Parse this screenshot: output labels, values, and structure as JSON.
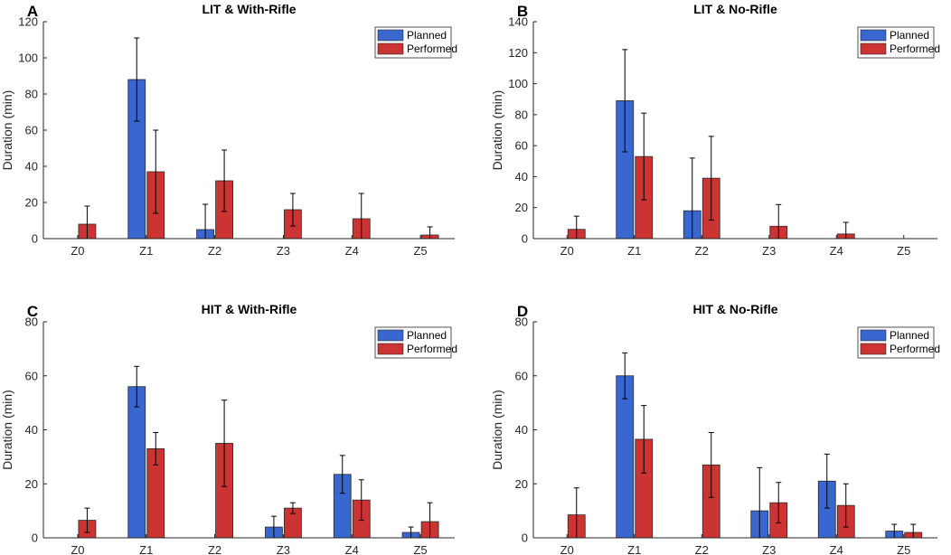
{
  "colors": {
    "planned": "#3a66cf",
    "performed": "#cc3333",
    "axis": "#262626",
    "error": "#000000"
  },
  "chart_data": [
    {
      "type": "bar",
      "letter": "A",
      "title": "LIT & With-Rifle",
      "xlabel": "",
      "ylabel": "Duration (min)",
      "ylim": [
        0,
        120
      ],
      "yticks": [
        "0",
        "20",
        "40",
        "60",
        "80",
        "100",
        "120"
      ],
      "categories": [
        "Z0",
        "Z1",
        "Z2",
        "Z3",
        "Z4",
        "Z5"
      ],
      "legend": [
        "Planned",
        "Performed"
      ],
      "legend_position": "top-right",
      "series": [
        {
          "name": "Planned",
          "values": [
            0,
            88,
            5,
            0,
            0,
            0
          ],
          "errors": [
            0,
            23,
            14,
            0,
            0,
            0
          ]
        },
        {
          "name": "Performed",
          "values": [
            8,
            37,
            32,
            16,
            11,
            2
          ],
          "errors": [
            10,
            23,
            17,
            9,
            14,
            4.5
          ]
        }
      ]
    },
    {
      "type": "bar",
      "letter": "B",
      "title": "LIT & No-Rifle",
      "xlabel": "",
      "ylabel": "Duration (min)",
      "ylim": [
        0,
        140
      ],
      "yticks": [
        "0",
        "20",
        "40",
        "60",
        "80",
        "100",
        "120",
        "140"
      ],
      "categories": [
        "Z0",
        "Z1",
        "Z2",
        "Z3",
        "Z4",
        "Z5"
      ],
      "legend": [
        "Planned",
        "Performed"
      ],
      "legend_position": "top-right",
      "series": [
        {
          "name": "Planned",
          "values": [
            0,
            89,
            18,
            0,
            0,
            0
          ],
          "errors": [
            0,
            33,
            34,
            0,
            0,
            0
          ]
        },
        {
          "name": "Performed",
          "values": [
            6,
            53,
            39,
            8,
            3,
            0
          ],
          "errors": [
            8.5,
            28,
            27,
            14,
            7.5,
            0
          ]
        }
      ]
    },
    {
      "type": "bar",
      "letter": "C",
      "title": "HIT & With-Rifle",
      "xlabel": "",
      "ylabel": "Duration (min)",
      "ylim": [
        0,
        80
      ],
      "yticks": [
        "0",
        "20",
        "40",
        "60",
        "80"
      ],
      "categories": [
        "Z0",
        "Z1",
        "Z2",
        "Z3",
        "Z4",
        "Z5"
      ],
      "legend": [
        "Planned",
        "Performed"
      ],
      "legend_position": "top-right",
      "series": [
        {
          "name": "Planned",
          "values": [
            0,
            56,
            0,
            4,
            23.5,
            2
          ],
          "errors": [
            0,
            7.5,
            0,
            4,
            7,
            2
          ]
        },
        {
          "name": "Performed",
          "values": [
            6.5,
            33,
            35,
            11,
            14,
            6
          ],
          "errors": [
            4.5,
            6,
            16,
            2,
            7.5,
            7
          ]
        }
      ]
    },
    {
      "type": "bar",
      "letter": "D",
      "title": "HIT & No-Rifle",
      "xlabel": "",
      "ylabel": "Duration (min)",
      "ylim": [
        0,
        80
      ],
      "yticks": [
        "0",
        "20",
        "40",
        "60",
        "80"
      ],
      "categories": [
        "Z0",
        "Z1",
        "Z2",
        "Z3",
        "Z4",
        "Z5"
      ],
      "legend": [
        "Planned",
        "Performed"
      ],
      "legend_position": "top-right",
      "series": [
        {
          "name": "Planned",
          "values": [
            0,
            60,
            0,
            10,
            21,
            2.5
          ],
          "errors": [
            0,
            8.5,
            0,
            16,
            10,
            2.5
          ]
        },
        {
          "name": "Performed",
          "values": [
            8.5,
            36.5,
            27,
            13,
            12,
            2
          ],
          "errors": [
            10,
            12.5,
            12,
            7.5,
            8,
            3
          ]
        }
      ]
    }
  ]
}
